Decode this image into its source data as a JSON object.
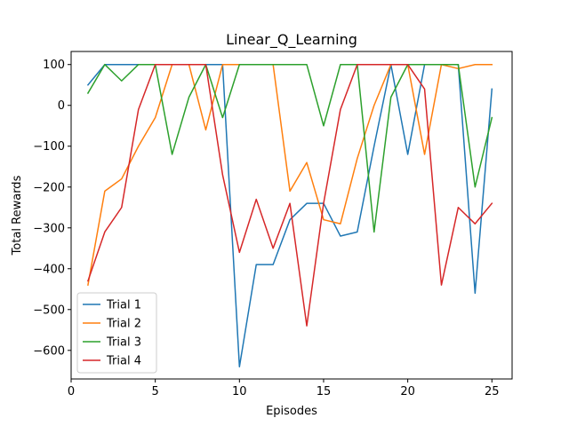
{
  "chart_data": {
    "type": "line",
    "title": "Linear_Q_Learning",
    "xlabel": "Episodes",
    "ylabel": "Total Rewards",
    "xlim": [
      0,
      26.2
    ],
    "ylim": [
      -670,
      132
    ],
    "xticks": [
      0,
      5,
      10,
      15,
      20,
      25
    ],
    "yticks": [
      -600,
      -500,
      -400,
      -300,
      -200,
      -100,
      0,
      100
    ],
    "legend_position": "lower left",
    "grid": false,
    "x": [
      1,
      2,
      3,
      4,
      5,
      6,
      7,
      8,
      9,
      10,
      11,
      12,
      13,
      14,
      15,
      16,
      17,
      18,
      19,
      20,
      21,
      22,
      23,
      24,
      25
    ],
    "series": [
      {
        "name": "Trial 1",
        "color": "#1f77b4",
        "values": [
          50,
          100,
          100,
          100,
          100,
          100,
          100,
          100,
          100,
          -640,
          -390,
          -390,
          -280,
          -240,
          -240,
          -320,
          -310,
          -100,
          100,
          -120,
          100,
          100,
          100,
          -460,
          40
        ]
      },
      {
        "name": "Trial 2",
        "color": "#ff7f0e",
        "values": [
          -440,
          -210,
          -180,
          -100,
          -30,
          100,
          100,
          -60,
          100,
          100,
          100,
          100,
          -210,
          -140,
          -280,
          -290,
          -130,
          0,
          100,
          100,
          -120,
          100,
          90,
          100,
          100
        ]
      },
      {
        "name": "Trial 3",
        "color": "#2ca02c",
        "values": [
          30,
          100,
          60,
          100,
          100,
          -120,
          20,
          100,
          -30,
          100,
          100,
          100,
          100,
          100,
          -50,
          100,
          100,
          -310,
          20,
          100,
          100,
          100,
          100,
          -200,
          -30
        ]
      },
      {
        "name": "Trial 4",
        "color": "#d62728",
        "values": [
          -430,
          -310,
          -250,
          -10,
          100,
          100,
          100,
          100,
          -170,
          -360,
          -230,
          -350,
          -240,
          -540,
          -240,
          -10,
          100,
          100,
          100,
          100,
          40,
          -440,
          -250,
          -290,
          -240
        ]
      }
    ]
  }
}
